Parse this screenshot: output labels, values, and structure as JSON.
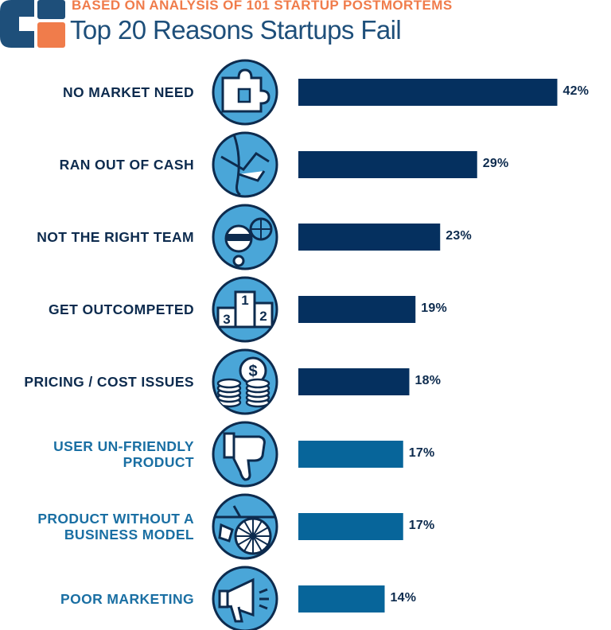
{
  "header": {
    "subtitle": "BASED ON ANALYSIS OF 101 STARTUP POSTMORTEMS",
    "title": "Top 20 Reasons Startups Fail"
  },
  "colors": {
    "dark_bar": "#05305f",
    "light_bar": "#07659a",
    "dark_label": "#0d2b4e",
    "light_label": "#1a6fa3",
    "icon_fill": "#4aa6d8",
    "icon_stroke": "#0d2b4e",
    "accent": "#f07c4b"
  },
  "chart_data": {
    "type": "bar",
    "orientation": "horizontal",
    "title": "Top 20 Reasons Startups Fail",
    "subtitle": "BASED ON ANALYSIS OF 101 STARTUP POSTMORTEMS",
    "xlabel": "",
    "ylabel": "",
    "xlim": [
      0,
      50
    ],
    "grid": false,
    "categories": [
      [
        "NO MARKET NEED"
      ],
      [
        "RAN OUT OF CASH"
      ],
      [
        "NOT THE RIGHT TEAM"
      ],
      [
        "GET OUTCOMPETED"
      ],
      [
        "PRICING / COST ISSUES"
      ],
      [
        "USER UN-FRIENDLY",
        "PRODUCT"
      ],
      [
        "PRODUCT WITHOUT A",
        "BUSINESS MODEL"
      ],
      [
        "POOR MARKETING"
      ]
    ],
    "values": [
      42,
      29,
      23,
      19,
      18,
      17,
      17,
      14
    ],
    "value_labels": [
      "42%",
      "29%",
      "23%",
      "19%",
      "18%",
      "17%",
      "17%",
      "14%"
    ],
    "icons": [
      "puzzle-icon",
      "handshake-icon",
      "team-icon",
      "podium-icon",
      "coins-icon",
      "thumbs-down-icon",
      "cart-icon",
      "megaphone-icon"
    ],
    "podium_numbers": [
      "1",
      "2",
      "3"
    ],
    "series_shade": [
      "dark",
      "dark",
      "dark",
      "dark",
      "dark",
      "light",
      "light",
      "light"
    ]
  }
}
